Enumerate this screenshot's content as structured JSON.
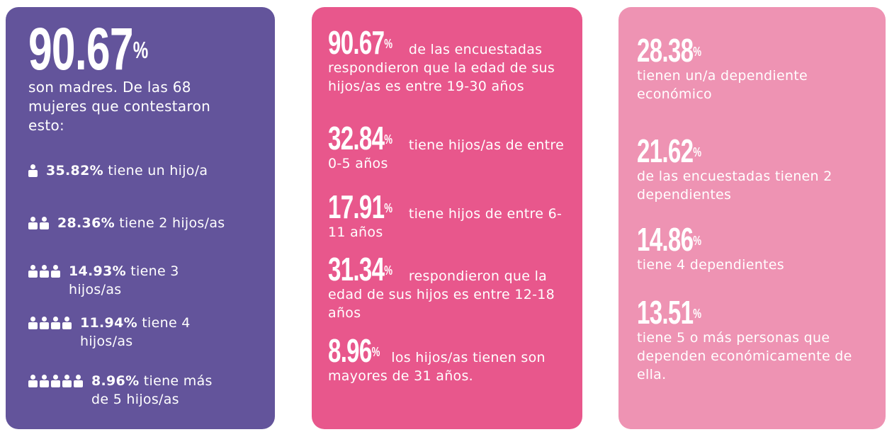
{
  "cards": [
    {
      "stat": "90.67",
      "unit": "%",
      "text": "son madres. De las 68 mujeres que contestaron esto:",
      "items": [
        {
          "stat": "35.82%",
          "text": "tiene un hijo/a"
        },
        {
          "stat": "28.36%",
          "text": "tiene 2 hijos/as"
        },
        {
          "stat": "14.93%",
          "text": "tiene 3 hijos/as"
        },
        {
          "stat": "11.94%",
          "text": "tiene 4 hijos/as"
        },
        {
          "stat": "8.96%",
          "text": "tiene más de 5 hijos/as"
        }
      ]
    },
    {
      "items": [
        {
          "stat": "90.67",
          "unit": "%",
          "text": "de las encuestadas respondieron que la edad de sus hijos/as es entre 19-30 años"
        },
        {
          "stat": "32.84",
          "unit": "%",
          "text": "tiene hijos/as de entre 0-5 años"
        },
        {
          "stat": "17.91",
          "unit": "%",
          "text": "tiene hijos de entre 6-11 años"
        },
        {
          "stat": "31.34",
          "unit": "%",
          "text": "respondieron que la edad de sus hijos es entre 12-18 años"
        },
        {
          "stat": "8.96",
          "unit": "%",
          "text": "los hijos/as tienen son mayores de 31 años."
        }
      ]
    },
    {
      "items": [
        {
          "stat": "28.38",
          "unit": "%",
          "text": "tienen un/a dependiente económico"
        },
        {
          "stat": "21.62",
          "unit": "%",
          "text": "de las encuestadas tienen 2 dependientes"
        },
        {
          "stat": "14.86",
          "unit": "%",
          "text": "tiene 4 dependientes"
        },
        {
          "stat": "13.51",
          "unit": "%",
          "text": "tiene 5 o más personas que dependen económicamente de ella."
        }
      ]
    }
  ]
}
